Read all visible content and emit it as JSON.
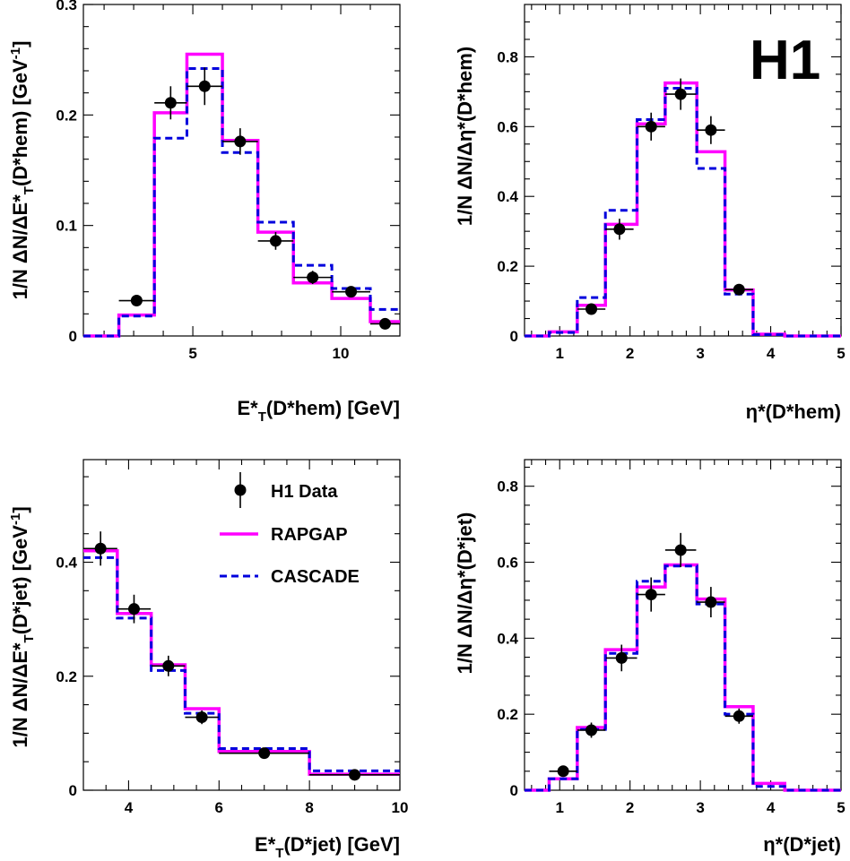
{
  "logo": "H1",
  "legend": {
    "items": [
      {
        "label": "H1 Data",
        "kind": "data"
      },
      {
        "label": "RAPGAP",
        "kind": "rapgap"
      },
      {
        "label": "CASCADE",
        "kind": "cascade"
      }
    ]
  },
  "colors": {
    "rapgap": "#ff00ff",
    "cascade": "#0000dd",
    "data": "#000000"
  },
  "chart_data": [
    {
      "type": "step",
      "xlabel_main": "E*",
      "xlabel_sub": "T",
      "xlabel_rest": "(D*hem) [GeV]",
      "ylabel_main": "1/N ΔN/ΔE*",
      "ylabel_sub": "T",
      "ylabel_rest": "(D*hem) [GeV",
      "ylabel_sup": "-1",
      "ylabel_close": "]",
      "xlim": [
        1.3,
        12
      ],
      "ylim": [
        0,
        0.3
      ],
      "xticks": [
        5,
        10
      ],
      "xticklabels": [
        "5",
        "10"
      ],
      "yticks": [
        0,
        0.1,
        0.2,
        0.3
      ],
      "yticklabels": [
        "0",
        "0.1",
        "0.2",
        "0.3"
      ],
      "xminor": [
        2,
        3,
        4,
        6,
        7,
        8,
        9,
        11
      ],
      "yminor": [
        0.02,
        0.04,
        0.06,
        0.08,
        0.12,
        0.14,
        0.16,
        0.18,
        0.22,
        0.24,
        0.26,
        0.28
      ],
      "edges": [
        1.3,
        2.5,
        3.7,
        4.8,
        6.0,
        7.2,
        8.4,
        9.7,
        11.0,
        12.0
      ],
      "rapgap": [
        0.0,
        0.019,
        0.202,
        0.255,
        0.177,
        0.094,
        0.048,
        0.034,
        0.013
      ],
      "cascade": [
        0.0,
        0.018,
        0.179,
        0.242,
        0.166,
        0.103,
        0.064,
        0.043,
        0.024
      ],
      "data": [
        {
          "x": 3.1,
          "y": 0.032,
          "xerr": 0.6,
          "yerr": 0.004
        },
        {
          "x": 4.25,
          "y": 0.211,
          "xerr": 0.55,
          "yerr": 0.015
        },
        {
          "x": 5.4,
          "y": 0.226,
          "xerr": 0.6,
          "yerr": 0.017
        },
        {
          "x": 6.6,
          "y": 0.176,
          "xerr": 0.6,
          "yerr": 0.012
        },
        {
          "x": 7.8,
          "y": 0.086,
          "xerr": 0.6,
          "yerr": 0.008
        },
        {
          "x": 9.05,
          "y": 0.053,
          "xerr": 0.65,
          "yerr": 0.006
        },
        {
          "x": 10.35,
          "y": 0.04,
          "xerr": 0.65,
          "yerr": 0.005
        },
        {
          "x": 11.5,
          "y": 0.011,
          "xerr": 0.5,
          "yerr": 0.003
        }
      ]
    },
    {
      "type": "step",
      "xlabel_main": "η*(D*hem)",
      "xlabel_sub": "",
      "xlabel_rest": "",
      "ylabel_main": "1/N ΔN/Δη*(D*hem)",
      "ylabel_sub": "",
      "ylabel_rest": "",
      "ylabel_sup": "",
      "ylabel_close": "",
      "xlim": [
        0.5,
        5
      ],
      "ylim": [
        0,
        0.95
      ],
      "xticks": [
        1,
        2,
        3,
        4,
        5
      ],
      "xticklabels": [
        "1",
        "2",
        "3",
        "4",
        "5"
      ],
      "yticks": [
        0,
        0.2,
        0.4,
        0.6,
        0.8
      ],
      "yticklabels": [
        "0",
        "0.2",
        "0.4",
        "0.6",
        "0.8"
      ],
      "xminor": [
        0.6,
        0.8,
        1.2,
        1.4,
        1.6,
        1.8,
        2.2,
        2.4,
        2.6,
        2.8,
        3.2,
        3.4,
        3.6,
        3.8,
        4.2,
        4.4,
        4.6,
        4.8
      ],
      "yminor": [
        0.05,
        0.1,
        0.15,
        0.25,
        0.3,
        0.35,
        0.45,
        0.5,
        0.55,
        0.65,
        0.7,
        0.75,
        0.85,
        0.9
      ],
      "edges": [
        0.5,
        0.85,
        1.25,
        1.65,
        2.1,
        2.5,
        2.95,
        3.35,
        3.75,
        4.2,
        5.0
      ],
      "rapgap": [
        0.0,
        0.012,
        0.088,
        0.32,
        0.608,
        0.725,
        0.528,
        0.132,
        0.005,
        0.0
      ],
      "cascade": [
        0.0,
        0.01,
        0.11,
        0.36,
        0.62,
        0.71,
        0.48,
        0.12,
        0.004,
        0.0
      ],
      "data": [
        {
          "x": 1.45,
          "y": 0.077,
          "xerr": 0.2,
          "yerr": 0.01
        },
        {
          "x": 1.85,
          "y": 0.306,
          "xerr": 0.2,
          "yerr": 0.03
        },
        {
          "x": 2.3,
          "y": 0.6,
          "xerr": 0.2,
          "yerr": 0.04
        },
        {
          "x": 2.72,
          "y": 0.693,
          "xerr": 0.22,
          "yerr": 0.045
        },
        {
          "x": 3.15,
          "y": 0.59,
          "xerr": 0.2,
          "yerr": 0.04
        },
        {
          "x": 3.55,
          "y": 0.133,
          "xerr": 0.2,
          "yerr": 0.015
        }
      ]
    },
    {
      "type": "step",
      "xlabel_main": "E*",
      "xlabel_sub": "T",
      "xlabel_rest": "(D*jet) [GeV]",
      "ylabel_main": "1/N ΔN/ΔE*",
      "ylabel_sub": "T",
      "ylabel_rest": "(D*jet) [GeV",
      "ylabel_sup": "-1",
      "ylabel_close": "]",
      "xlim": [
        3,
        10
      ],
      "ylim": [
        0,
        0.58
      ],
      "xticks": [
        4,
        6,
        8,
        10
      ],
      "xticklabels": [
        "4",
        "6",
        "8",
        "10"
      ],
      "xminor": [
        3.5,
        4.5,
        5,
        5.5,
        6.5,
        7,
        7.5,
        8.5,
        9,
        9.5
      ],
      "yminor": [
        0.05,
        0.1,
        0.15,
        0.25,
        0.3,
        0.35,
        0.45,
        0.5,
        0.55
      ],
      "yticks": [
        0,
        0.2,
        0.4
      ],
      "yticklabels": [
        "0",
        "0.2",
        "0.4"
      ],
      "edges": [
        3.0,
        3.75,
        4.5,
        5.25,
        6.0,
        8.0,
        10.0
      ],
      "rapgap": [
        0.42,
        0.31,
        0.22,
        0.143,
        0.068,
        0.028
      ],
      "cascade": [
        0.408,
        0.302,
        0.21,
        0.135,
        0.073,
        0.034
      ],
      "data": [
        {
          "x": 3.38,
          "y": 0.424,
          "xerr": 0.37,
          "yerr": 0.03
        },
        {
          "x": 4.12,
          "y": 0.318,
          "xerr": 0.37,
          "yerr": 0.025
        },
        {
          "x": 4.88,
          "y": 0.218,
          "xerr": 0.37,
          "yerr": 0.018
        },
        {
          "x": 5.62,
          "y": 0.128,
          "xerr": 0.37,
          "yerr": 0.012
        },
        {
          "x": 7.0,
          "y": 0.065,
          "xerr": 1.0,
          "yerr": 0.006
        },
        {
          "x": 9.0,
          "y": 0.027,
          "xerr": 1.0,
          "yerr": 0.004
        }
      ]
    },
    {
      "type": "step",
      "xlabel_main": "η*(D*jet)",
      "xlabel_sub": "",
      "xlabel_rest": "",
      "ylabel_main": "1/N ΔN/Δη*(D*jet)",
      "ylabel_sub": "",
      "ylabel_rest": "",
      "ylabel_sup": "",
      "ylabel_close": "",
      "xlim": [
        0.5,
        5
      ],
      "ylim": [
        0,
        0.87
      ],
      "xticks": [
        1,
        2,
        3,
        4,
        5
      ],
      "xticklabels": [
        "1",
        "2",
        "3",
        "4",
        "5"
      ],
      "yticks": [
        0,
        0.2,
        0.4,
        0.6,
        0.8
      ],
      "yticklabels": [
        "0",
        "0.2",
        "0.4",
        "0.6",
        "0.8"
      ],
      "xminor": [
        0.6,
        0.8,
        1.2,
        1.4,
        1.6,
        1.8,
        2.2,
        2.4,
        2.6,
        2.8,
        3.2,
        3.4,
        3.6,
        3.8,
        4.2,
        4.4,
        4.6,
        4.8
      ],
      "yminor": [
        0.05,
        0.1,
        0.15,
        0.25,
        0.3,
        0.35,
        0.45,
        0.5,
        0.55,
        0.65,
        0.7,
        0.75,
        0.85
      ],
      "edges": [
        0.5,
        0.85,
        1.25,
        1.65,
        2.1,
        2.5,
        2.95,
        3.35,
        3.75,
        4.2,
        5.0
      ],
      "rapgap": [
        0.0,
        0.03,
        0.165,
        0.37,
        0.535,
        0.593,
        0.503,
        0.22,
        0.018,
        0.0
      ],
      "cascade": [
        0.0,
        0.03,
        0.16,
        0.36,
        0.55,
        0.59,
        0.49,
        0.2,
        0.01,
        0.0
      ],
      "data": [
        {
          "x": 1.05,
          "y": 0.05,
          "xerr": 0.2,
          "yerr": 0.01
        },
        {
          "x": 1.45,
          "y": 0.158,
          "xerr": 0.2,
          "yerr": 0.02
        },
        {
          "x": 1.88,
          "y": 0.348,
          "xerr": 0.22,
          "yerr": 0.035
        },
        {
          "x": 2.3,
          "y": 0.515,
          "xerr": 0.2,
          "yerr": 0.045
        },
        {
          "x": 2.72,
          "y": 0.632,
          "xerr": 0.22,
          "yerr": 0.045
        },
        {
          "x": 3.15,
          "y": 0.495,
          "xerr": 0.2,
          "yerr": 0.04
        },
        {
          "x": 3.55,
          "y": 0.195,
          "xerr": 0.2,
          "yerr": 0.02
        }
      ]
    }
  ]
}
